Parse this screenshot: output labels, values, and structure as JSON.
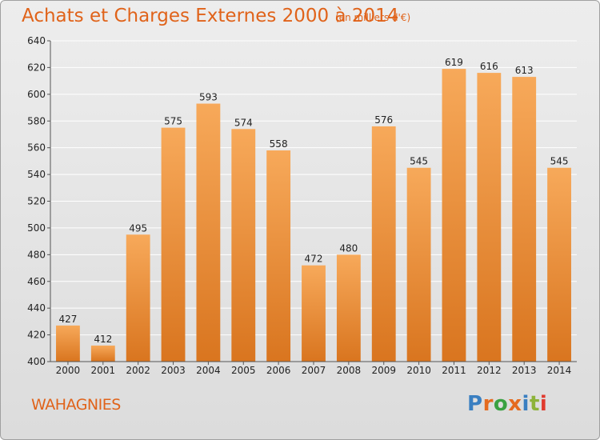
{
  "header": {
    "title": "Achats et Charges Externes 2000 à 2014",
    "unit": "(en milliers d'€)"
  },
  "footer": {
    "commune": "WAHAGNIES",
    "logo": "Proxiti",
    "logo_colors": [
      "#3a7fc1",
      "#e56b1f",
      "#3aa142",
      "#e56b1f",
      "#3a7fc1",
      "#8db33a",
      "#e03a2e"
    ]
  },
  "colors": {
    "bar_light": "#f7a95a",
    "bar_dark": "#d9751f",
    "accent": "#e0631a",
    "grid": "#ffffff",
    "axis_text": "#222222"
  },
  "chart_data": {
    "type": "bar",
    "title": "Achats et Charges Externes 2000 à 2014",
    "categories": [
      "2000",
      "2001",
      "2002",
      "2003",
      "2004",
      "2005",
      "2006",
      "2007",
      "2008",
      "2009",
      "2010",
      "2011",
      "2012",
      "2013",
      "2014"
    ],
    "values": [
      427,
      412,
      495,
      575,
      593,
      574,
      558,
      472,
      480,
      576,
      545,
      619,
      616,
      613,
      545
    ],
    "ylim": [
      400,
      640
    ],
    "yticks": [
      400,
      420,
      440,
      460,
      480,
      500,
      520,
      540,
      560,
      580,
      600,
      620,
      640
    ],
    "grid": true
  }
}
